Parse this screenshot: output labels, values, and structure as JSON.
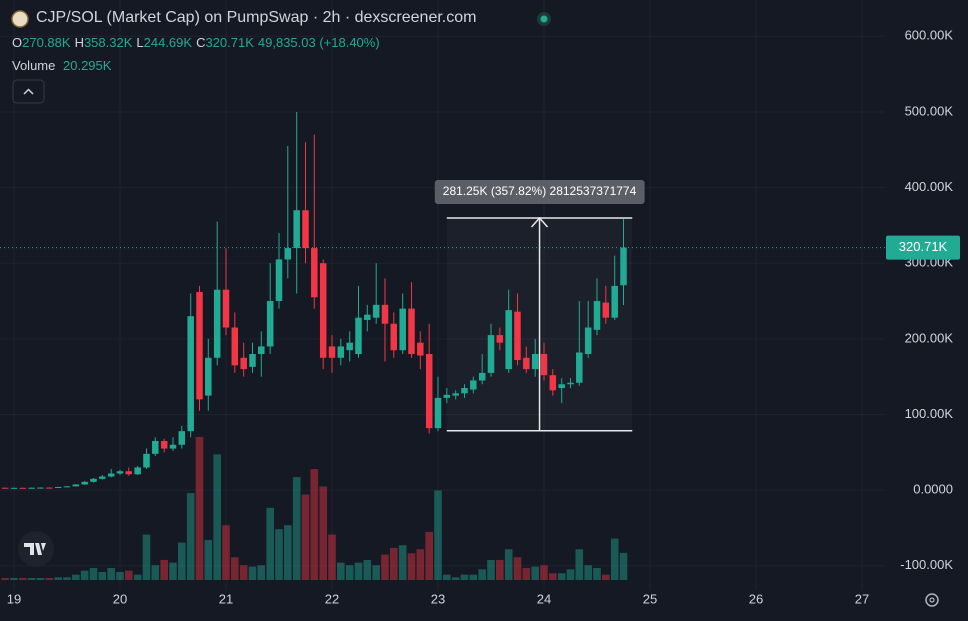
{
  "chart_data": {
    "type": "candlestick",
    "title": "CJP/SOL (Market Cap) on PumpSwap · 2h · dexscreener.com",
    "ohlc_legend": [
      {
        "label": "O",
        "value": "270.88K"
      },
      {
        "label": "H",
        "value": "358.32K"
      },
      {
        "label": "L",
        "value": "244.69K"
      },
      {
        "label": "C",
        "value": "320.71K"
      }
    ],
    "change": "49,835.03 (+18.40%)",
    "volume_legend": {
      "label": "Volume",
      "value": "20.295K"
    },
    "last_price_label": "320.71K",
    "up_color": "#22ab94",
    "down_color": "#f23645",
    "grid": true,
    "x": [
      18.917,
      19.0,
      19.083,
      19.167,
      19.25,
      19.333,
      19.417,
      19.5,
      19.583,
      19.667,
      19.75,
      19.833,
      19.917,
      20.0,
      20.083,
      20.167,
      20.25,
      20.333,
      20.417,
      20.5,
      20.583,
      20.667,
      20.75,
      20.833,
      20.917,
      21.0,
      21.083,
      21.167,
      21.25,
      21.333,
      21.417,
      21.5,
      21.583,
      21.667,
      21.75,
      21.833,
      21.917,
      22.0,
      22.083,
      22.167,
      22.25,
      22.333,
      22.417,
      22.5,
      22.583,
      22.667,
      22.75,
      22.833,
      22.917,
      23.0,
      23.083,
      23.167,
      23.25,
      23.333,
      23.417,
      23.5,
      23.583,
      23.667,
      23.75,
      23.833,
      23.917,
      24.0,
      24.083,
      24.167,
      24.25,
      24.333,
      24.417,
      24.5,
      24.583,
      24.667,
      24.75
    ],
    "open": [
      3.2,
      3.0,
      3.1,
      3.0,
      3.2,
      3.4,
      3.3,
      4.2,
      5.0,
      7.5,
      11,
      15,
      18,
      22,
      25,
      21,
      30,
      48,
      65,
      55,
      60,
      78,
      262,
      125,
      175,
      265,
      215,
      175,
      163,
      180,
      190,
      250,
      305,
      320,
      370,
      320,
      300,
      190,
      175,
      185,
      180,
      225,
      228,
      245,
      220,
      185,
      240,
      195,
      180,
      82,
      122,
      125,
      128,
      133,
      145,
      155,
      205,
      160,
      236,
      175,
      160,
      180,
      152,
      135,
      140,
      142,
      180,
      212,
      248,
      228,
      270.88
    ],
    "high": [
      3.5,
      3.4,
      3.3,
      3.5,
      3.6,
      3.8,
      4.5,
      5.5,
      8,
      12,
      16,
      20,
      28,
      27,
      30,
      32,
      55,
      70,
      68,
      70,
      85,
      260,
      270,
      200,
      355,
      320,
      235,
      195,
      195,
      210,
      300,
      340,
      455,
      500,
      460,
      470,
      305,
      205,
      200,
      210,
      270,
      245,
      300,
      280,
      235,
      260,
      275,
      210,
      220,
      150,
      135,
      132,
      140,
      150,
      180,
      220,
      215,
      265,
      260,
      190,
      200,
      195,
      160,
      148,
      148,
      250,
      250,
      280,
      270,
      310,
      358.32
    ],
    "low": [
      2.5,
      2.8,
      2.9,
      2.8,
      3.0,
      3.1,
      3.2,
      4.0,
      4.8,
      7,
      10,
      14,
      17,
      20,
      19,
      20,
      28,
      45,
      50,
      52,
      55,
      70,
      105,
      105,
      165,
      205,
      155,
      150,
      155,
      150,
      180,
      240,
      280,
      260,
      300,
      240,
      160,
      155,
      165,
      170,
      175,
      210,
      220,
      170,
      175,
      180,
      175,
      160,
      75,
      78,
      115,
      120,
      122,
      128,
      140,
      150,
      185,
      155,
      165,
      155,
      150,
      145,
      125,
      115,
      135,
      138,
      175,
      205,
      220,
      225,
      244.69
    ],
    "close": [
      3.0,
      3.1,
      3.0,
      3.2,
      3.4,
      3.3,
      4.2,
      5.0,
      7.5,
      11,
      15,
      18,
      22,
      25,
      21,
      30,
      48,
      65,
      55,
      60,
      78,
      230,
      120,
      175,
      265,
      215,
      165,
      160,
      180,
      190,
      250,
      305,
      320,
      370,
      320,
      255,
      175,
      175,
      190,
      195,
      228,
      232,
      245,
      220,
      185,
      240,
      180,
      178,
      82,
      122,
      126,
      128,
      135,
      145,
      155,
      205,
      195,
      238,
      172,
      160,
      180,
      152,
      132,
      140,
      142,
      182,
      215,
      250,
      228,
      270,
      320.71
    ],
    "volume": [
      1.5,
      1.5,
      1.5,
      1.5,
      1.5,
      1.5,
      2,
      2,
      4,
      7,
      9,
      6,
      9,
      6,
      7,
      4,
      34,
      11,
      15,
      13,
      28,
      65,
      107,
      30,
      94,
      41,
      17,
      11,
      10,
      11,
      54,
      38,
      41,
      77,
      64,
      83,
      70,
      34,
      13,
      11,
      13,
      15,
      11,
      19,
      24,
      26,
      20,
      23,
      36,
      67,
      4,
      2,
      4,
      4,
      8,
      15,
      15,
      23,
      17,
      9,
      10,
      11,
      5,
      5,
      8,
      23,
      11,
      9,
      4,
      31,
      20.295
    ],
    "xlim": [
      18.868,
      27.217
    ],
    "xticks": [
      19,
      20,
      21,
      22,
      23,
      24,
      25,
      26,
      27
    ],
    "ylim": [
      -132,
      648
    ],
    "yticks": [
      {
        "value": 600,
        "label": "600.00K"
      },
      {
        "value": 500,
        "label": "500.00K"
      },
      {
        "value": 400,
        "label": "400.00K"
      },
      {
        "value": 300,
        "label": "300.00K"
      },
      {
        "value": 200,
        "label": "200.00K"
      },
      {
        "value": 100,
        "label": "100.00K"
      },
      {
        "value": 0,
        "label": "0.0000"
      },
      {
        "value": -100,
        "label": "-100.00K"
      }
    ],
    "measure": {
      "label": "281.25K (357.82%) 2812537371774",
      "from": 78.6,
      "to": 359.85,
      "x_from": 23.083,
      "x_to": 24.833
    }
  }
}
